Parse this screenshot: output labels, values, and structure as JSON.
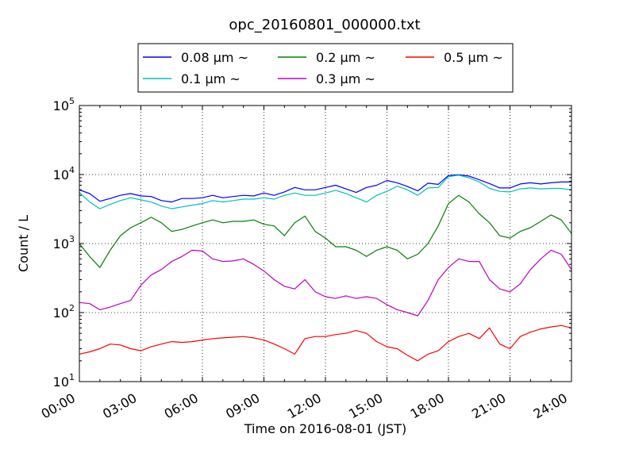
{
  "chart_data": {
    "type": "line",
    "title": "opc_20160801_000000.txt",
    "xlabel": "Time on 2016-08-01 (JST)",
    "ylabel": "Count / L",
    "x_unit": "hours",
    "xlim": [
      0,
      24
    ],
    "ylim": [
      10,
      100000
    ],
    "y_scale": "log",
    "grid": true,
    "legend_placement": "top-center, above plot",
    "x_tick_labels": [
      "00:00",
      "03:00",
      "06:00",
      "09:00",
      "12:00",
      "15:00",
      "18:00",
      "21:00",
      "24:00"
    ],
    "x_ticks": [
      0,
      3,
      6,
      9,
      12,
      15,
      18,
      21,
      24
    ],
    "y_tick_labels": [
      {
        "base": "10",
        "exp": "1",
        "value": 10
      },
      {
        "base": "10",
        "exp": "2",
        "value": 100
      },
      {
        "base": "10",
        "exp": "3",
        "value": 1000
      },
      {
        "base": "10",
        "exp": "4",
        "value": 10000
      },
      {
        "base": "10",
        "exp": "5",
        "value": 100000
      }
    ],
    "x": [
      0,
      0.5,
      1,
      1.5,
      2,
      2.5,
      3,
      3.5,
      4,
      4.5,
      5,
      5.5,
      6,
      6.5,
      7,
      7.5,
      8,
      8.5,
      9,
      9.5,
      10,
      10.5,
      11,
      11.5,
      12,
      12.5,
      13,
      13.5,
      14,
      14.5,
      15,
      15.5,
      16,
      16.5,
      17,
      17.5,
      18,
      18.5,
      19,
      19.5,
      20,
      20.5,
      21,
      21.5,
      22,
      22.5,
      23,
      23.5,
      24
    ],
    "series": [
      {
        "name": "0.08 µm ~",
        "color": "#0000ff",
        "values": [
          6000,
          5300,
          4100,
          4500,
          5000,
          5300,
          4900,
          4800,
          4200,
          4000,
          4500,
          4500,
          4600,
          5000,
          4600,
          4800,
          5000,
          4900,
          5400,
          5000,
          5600,
          6500,
          6000,
          6000,
          6500,
          7000,
          6200,
          5500,
          6500,
          7000,
          8200,
          7600,
          6700,
          5800,
          7500,
          7200,
          9700,
          9900,
          9500,
          8400,
          7400,
          6400,
          6400,
          7300,
          7600,
          7300,
          7600,
          7800,
          7800
        ]
      },
      {
        "name": "0.1 µm ~",
        "color": "#00bfbf",
        "values": [
          5500,
          4000,
          3200,
          3700,
          4200,
          4600,
          4300,
          4000,
          3500,
          3200,
          3400,
          3600,
          3800,
          4200,
          4000,
          4200,
          4400,
          4400,
          4600,
          4400,
          5000,
          5400,
          5000,
          5000,
          5400,
          5900,
          5300,
          4600,
          4000,
          5000,
          5700,
          6800,
          6000,
          5000,
          6400,
          6500,
          9300,
          9800,
          9000,
          7800,
          6300,
          5700,
          5600,
          6200,
          6400,
          6200,
          6300,
          6300,
          6000
        ]
      },
      {
        "name": "0.2 µm ~",
        "color": "#008000",
        "values": [
          1000,
          650,
          450,
          800,
          1300,
          1700,
          2000,
          2400,
          2000,
          1500,
          1600,
          1800,
          2000,
          2200,
          2000,
          2100,
          2100,
          2200,
          1900,
          1800,
          1300,
          2000,
          2500,
          1500,
          1200,
          900,
          900,
          800,
          650,
          800,
          900,
          800,
          600,
          700,
          1000,
          1800,
          3800,
          5000,
          4000,
          2700,
          2000,
          1300,
          1200,
          1500,
          1700,
          2100,
          2600,
          2200,
          1400
        ]
      },
      {
        "name": "0.3 µm ~",
        "color": "#bf00bf",
        "values": [
          140,
          135,
          110,
          120,
          135,
          150,
          250,
          350,
          420,
          550,
          650,
          800,
          780,
          600,
          550,
          560,
          600,
          500,
          400,
          300,
          240,
          220,
          300,
          200,
          170,
          160,
          175,
          160,
          170,
          160,
          130,
          110,
          100,
          90,
          150,
          300,
          450,
          600,
          550,
          550,
          300,
          220,
          200,
          260,
          420,
          600,
          800,
          700,
          420
        ]
      },
      {
        "name": "0.5 µm ~",
        "color": "#ff0000",
        "values": [
          25,
          27,
          30,
          35,
          34,
          30,
          28,
          32,
          35,
          38,
          37,
          38,
          40,
          42,
          43,
          44,
          45,
          43,
          40,
          35,
          30,
          25,
          42,
          45,
          45,
          48,
          50,
          55,
          50,
          38,
          32,
          30,
          24,
          20,
          25,
          28,
          38,
          45,
          50,
          42,
          60,
          35,
          30,
          45,
          52,
          58,
          62,
          65,
          60
        ]
      }
    ]
  }
}
